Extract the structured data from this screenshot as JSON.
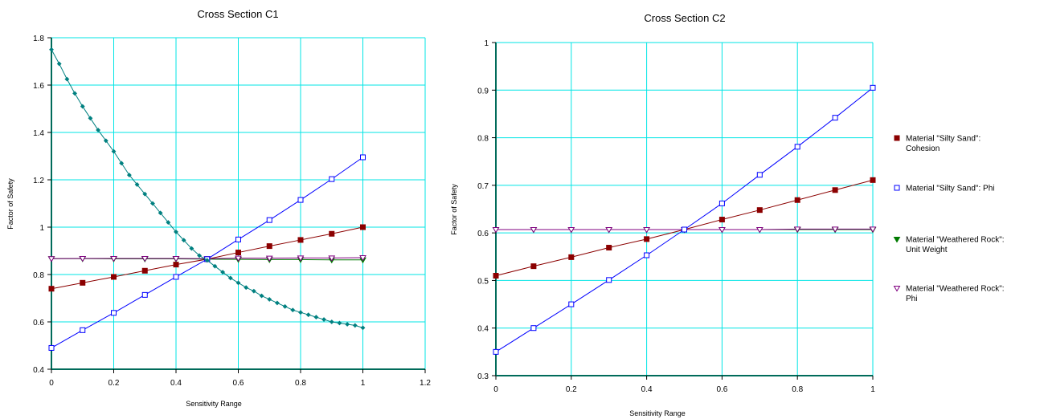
{
  "chart_data": [
    {
      "type": "line",
      "title": "Cross Section C1",
      "xlabel": "Sensitivity Range",
      "ylabel": "Factor of Safety",
      "xlim": [
        0,
        1.2
      ],
      "ylim": [
        0.4,
        1.8
      ],
      "xticks": [
        "0",
        "0.2",
        "0.4",
        "0.6",
        "0.8",
        "1",
        "1.2"
      ],
      "yticks": [
        "0.4",
        "0.6",
        "0.8",
        "1",
        "1.2",
        "1.4",
        "1.6",
        "1.8"
      ],
      "grid": true,
      "series": [
        {
          "key": "cohesion",
          "name": "Material \"Silty Sand\": Cohesion",
          "color": "#8b0000",
          "marker": "square-filled",
          "x": [
            0,
            0.1,
            0.2,
            0.3,
            0.4,
            0.5,
            0.6,
            0.7,
            0.8,
            0.9,
            1.0
          ],
          "y": [
            0.74,
            0.765,
            0.79,
            0.816,
            0.842,
            0.865,
            0.893,
            0.92,
            0.946,
            0.972,
            1.0
          ]
        },
        {
          "key": "phi",
          "name": "Material \"Silty Sand\": Phi",
          "color": "#0000ff",
          "marker": "square-open",
          "x": [
            0,
            0.1,
            0.2,
            0.3,
            0.4,
            0.5,
            0.6,
            0.7,
            0.8,
            0.9,
            1.0
          ],
          "y": [
            0.49,
            0.565,
            0.638,
            0.714,
            0.79,
            0.865,
            0.948,
            1.03,
            1.115,
            1.203,
            1.295
          ]
        },
        {
          "key": "uw",
          "name": "Material \"Weathered Rock\": Unit Weight",
          "color": "#007a00",
          "marker": "triangle-down-filled",
          "x": [
            0,
            0.1,
            0.2,
            0.3,
            0.4,
            0.5,
            0.6,
            0.7,
            0.8,
            0.9,
            1.0
          ],
          "y": [
            0.867,
            0.867,
            0.866,
            0.866,
            0.866,
            0.865,
            0.864,
            0.863,
            0.863,
            0.862,
            0.862
          ]
        },
        {
          "key": "wr_phi",
          "name": "Material \"Weathered Rock\": Phi",
          "color": "#800080",
          "marker": "triangle-down-open",
          "x": [
            0,
            0.1,
            0.2,
            0.3,
            0.4,
            0.5,
            0.6,
            0.7,
            0.8,
            0.9,
            1.0
          ],
          "y": [
            0.867,
            0.868,
            0.868,
            0.868,
            0.868,
            0.867,
            0.869,
            0.869,
            0.87,
            0.87,
            0.871
          ]
        },
        {
          "key": "teal",
          "name": "",
          "color": "#008080",
          "marker": "diamond-filled",
          "x": [
            0,
            0.025,
            0.05,
            0.075,
            0.1,
            0.125,
            0.15,
            0.175,
            0.2,
            0.225,
            0.25,
            0.275,
            0.3,
            0.325,
            0.35,
            0.375,
            0.4,
            0.425,
            0.45,
            0.475,
            0.5,
            0.525,
            0.55,
            0.575,
            0.6,
            0.625,
            0.65,
            0.675,
            0.7,
            0.725,
            0.75,
            0.775,
            0.8,
            0.825,
            0.85,
            0.875,
            0.9,
            0.925,
            0.95,
            0.975,
            1.0
          ],
          "y": [
            1.75,
            1.69,
            1.625,
            1.565,
            1.51,
            1.46,
            1.41,
            1.365,
            1.32,
            1.27,
            1.22,
            1.18,
            1.14,
            1.1,
            1.06,
            1.02,
            0.98,
            0.945,
            0.91,
            0.88,
            0.86,
            0.835,
            0.81,
            0.785,
            0.765,
            0.745,
            0.73,
            0.71,
            0.695,
            0.68,
            0.665,
            0.65,
            0.64,
            0.63,
            0.62,
            0.61,
            0.6,
            0.595,
            0.59,
            0.585,
            0.575
          ]
        }
      ]
    },
    {
      "type": "line",
      "title": "Cross Section C2",
      "xlabel": "Sensitivity Range",
      "ylabel": "Factor of Safety",
      "xlim": [
        0,
        1
      ],
      "ylim": [
        0.3,
        1
      ],
      "xticks": [
        "0",
        "0.2",
        "0.4",
        "0.6",
        "0.8",
        "1"
      ],
      "yticks": [
        "0.3",
        "0.4",
        "0.5",
        "0.6",
        "0.7",
        "0.8",
        "0.9",
        "1"
      ],
      "grid": true,
      "legend_position": "right",
      "series": [
        {
          "key": "cohesion",
          "name": "Material \"Silty Sand\": Cohesion",
          "color": "#8b0000",
          "marker": "square-filled",
          "x": [
            0,
            0.1,
            0.2,
            0.3,
            0.4,
            0.5,
            0.6,
            0.7,
            0.8,
            0.9,
            1.0
          ],
          "y": [
            0.51,
            0.53,
            0.549,
            0.569,
            0.587,
            0.607,
            0.628,
            0.648,
            0.669,
            0.69,
            0.711
          ]
        },
        {
          "key": "phi",
          "name": "Material \"Silty Sand\": Phi",
          "color": "#0000ff",
          "marker": "square-open",
          "x": [
            0,
            0.1,
            0.2,
            0.3,
            0.4,
            0.5,
            0.6,
            0.7,
            0.8,
            0.9,
            1.0
          ],
          "y": [
            0.35,
            0.4,
            0.45,
            0.501,
            0.553,
            0.607,
            0.662,
            0.722,
            0.781,
            0.842,
            0.905
          ]
        },
        {
          "key": "uw",
          "name": "Material \"Weathered Rock\": Unit Weight",
          "color": "#007a00",
          "marker": "triangle-down-filled",
          "x": [
            0,
            0.1,
            0.2,
            0.3,
            0.4,
            0.5,
            0.6,
            0.7,
            0.8,
            0.9,
            1.0
          ],
          "y": [
            0.607,
            0.607,
            0.607,
            0.607,
            0.607,
            0.607,
            0.607,
            0.607,
            0.607,
            0.607,
            0.607
          ]
        },
        {
          "key": "wr_phi",
          "name": "Material \"Weathered Rock\": Phi",
          "color": "#800080",
          "marker": "triangle-down-open",
          "x": [
            0,
            0.1,
            0.2,
            0.3,
            0.4,
            0.5,
            0.6,
            0.7,
            0.8,
            0.9,
            1.0
          ],
          "y": [
            0.607,
            0.607,
            0.607,
            0.607,
            0.607,
            0.607,
            0.607,
            0.607,
            0.608,
            0.608,
            0.608
          ]
        }
      ]
    }
  ],
  "legend": {
    "items": [
      {
        "line1": "Material \"Silty Sand\":",
        "line2": "Cohesion",
        "color": "#8b0000",
        "marker": "square-filled"
      },
      {
        "line1": "Material \"Silty Sand\": Phi",
        "line2": "",
        "color": "#0000ff",
        "marker": "square-open"
      },
      {
        "line1": "Material \"Weathered Rock\":",
        "line2": "Unit Weight",
        "color": "#007a00",
        "marker": "triangle-down-filled"
      },
      {
        "line1": "Material \"Weathered Rock\":",
        "line2": "Phi",
        "color": "#800080",
        "marker": "triangle-down-open"
      }
    ]
  },
  "colors": {
    "grid": "#00e5e5",
    "axis": "#006b5a"
  }
}
